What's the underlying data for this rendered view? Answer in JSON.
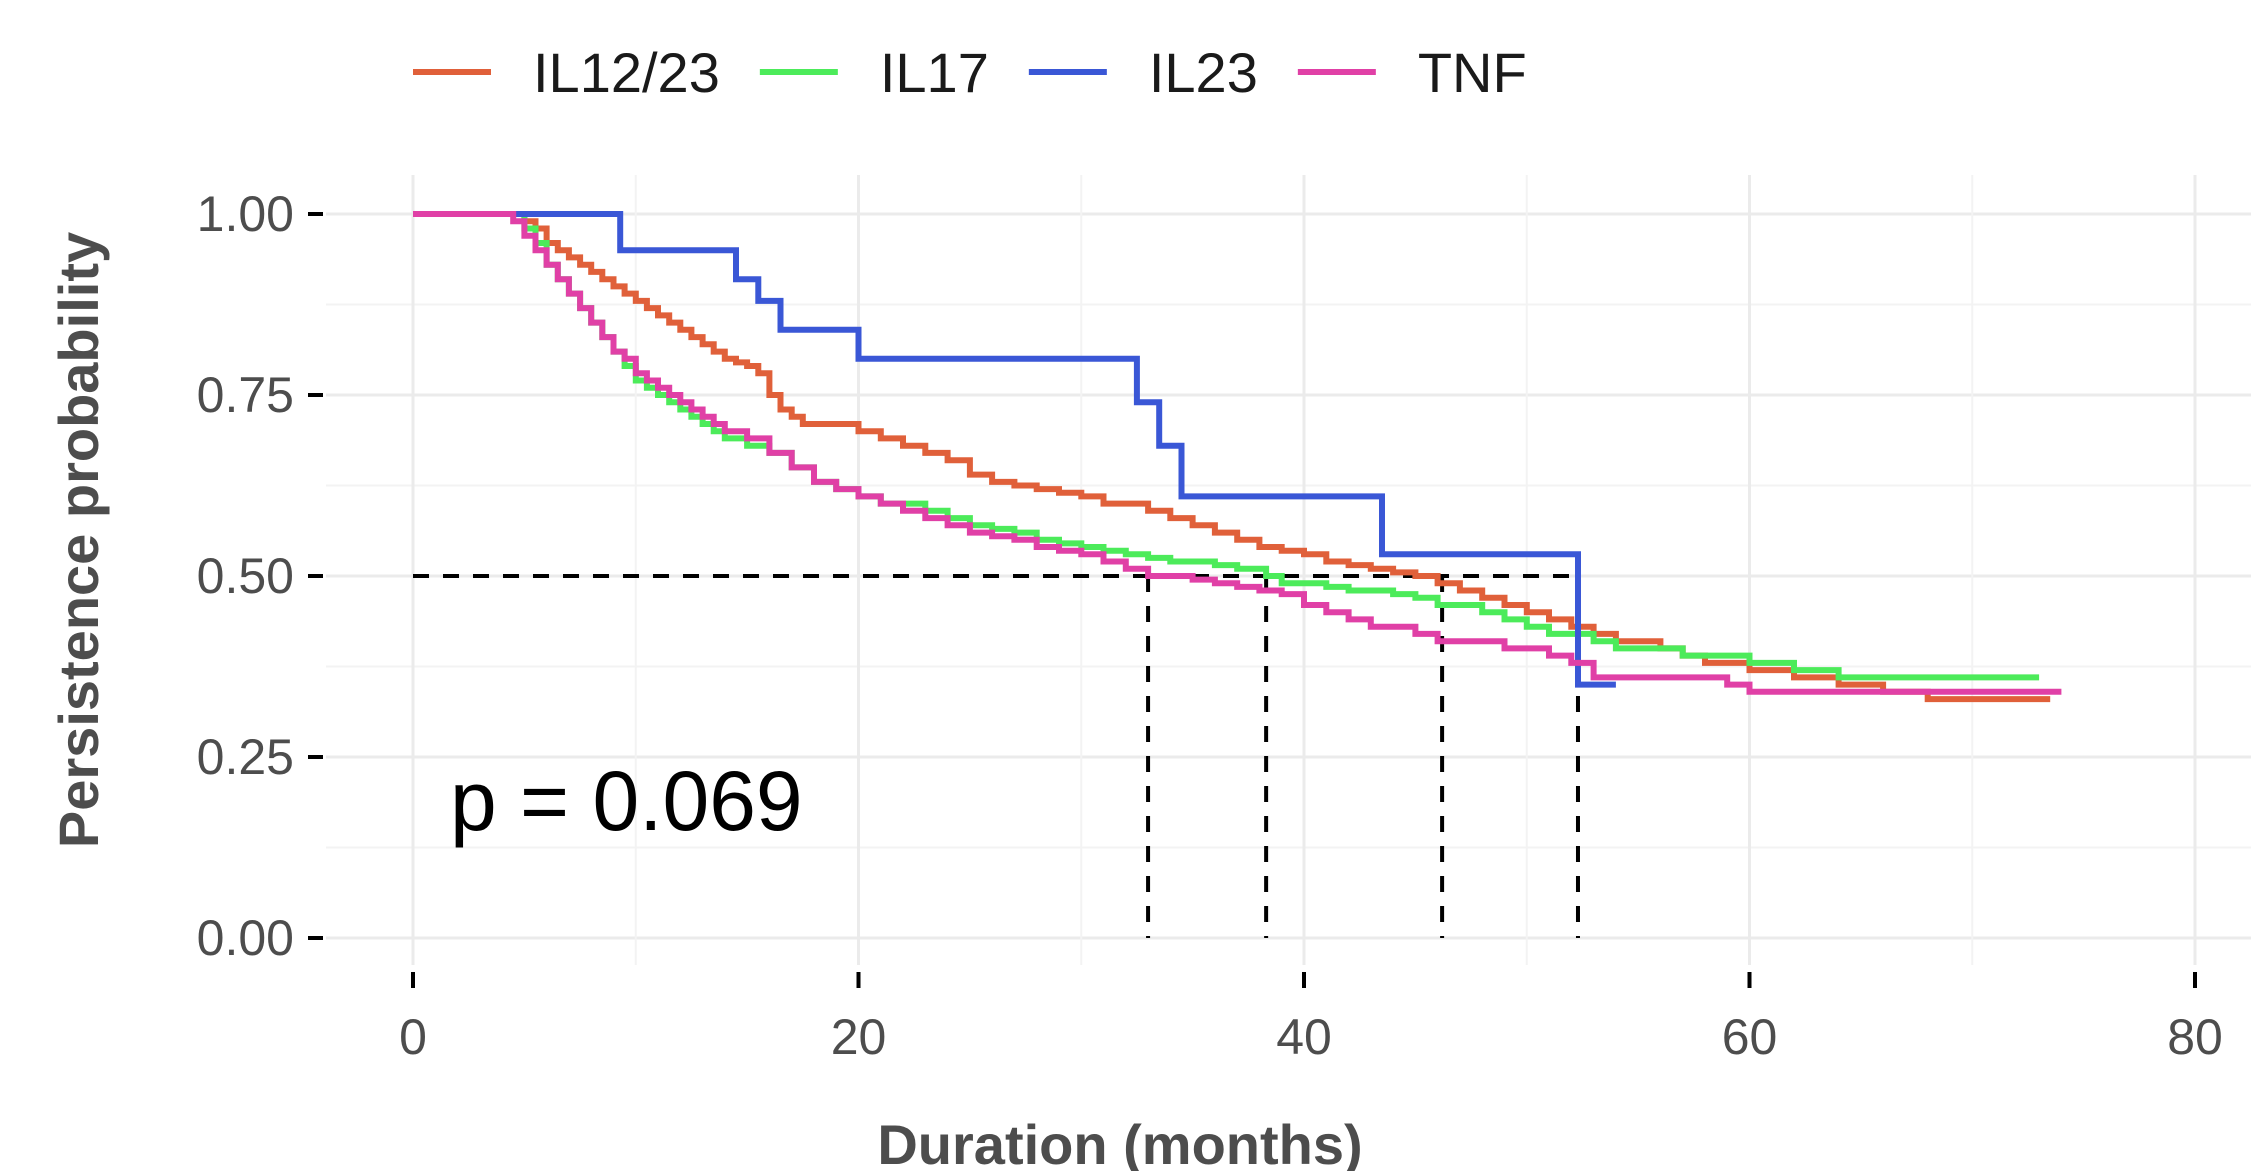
{
  "chart_data": {
    "type": "line",
    "xlabel": "Duration (months)",
    "ylabel": "Persistence probability",
    "xlim": [
      0,
      80
    ],
    "ylim": [
      0,
      1
    ],
    "x_ticks": [
      0,
      20,
      40,
      60,
      80
    ],
    "x_tick_labels": [
      "0",
      "20",
      "40",
      "60",
      "80"
    ],
    "y_ticks": [
      0,
      0.25,
      0.5,
      0.75,
      1
    ],
    "y_tick_labels": [
      "0.00",
      "0.25",
      "0.50",
      "0.75",
      "1.00"
    ],
    "grid": true,
    "legend_position": "top-left",
    "annotation": "p = 0.069",
    "median_reference": {
      "y": 0.5,
      "medians": [
        33,
        38.3,
        46.2,
        52.3
      ],
      "color": "#000000"
    },
    "series": [
      {
        "name": "IL12/23",
        "color": "#e0603a",
        "x": [
          0,
          4,
          5,
          5.5,
          6,
          6.5,
          7,
          7.5,
          8,
          8.5,
          9,
          9.5,
          10,
          10.5,
          11,
          11.5,
          12,
          12.5,
          13,
          13.5,
          14,
          14.5,
          15,
          15.5,
          16,
          16.5,
          17,
          17.5,
          18,
          19,
          20,
          21,
          22,
          23,
          24,
          25,
          26,
          27,
          28,
          29,
          30,
          31,
          32,
          33,
          34,
          35,
          36,
          37,
          38,
          39,
          40,
          41,
          42,
          43,
          44,
          45,
          46,
          47,
          48,
          49,
          50,
          51,
          52,
          53,
          54,
          55,
          56,
          57,
          58,
          59,
          60,
          62,
          64,
          66,
          68,
          70,
          72,
          73.5
        ],
        "y": [
          1,
          1,
          0.99,
          0.98,
          0.96,
          0.95,
          0.94,
          0.93,
          0.92,
          0.91,
          0.9,
          0.89,
          0.88,
          0.87,
          0.86,
          0.85,
          0.84,
          0.83,
          0.82,
          0.81,
          0.8,
          0.795,
          0.79,
          0.78,
          0.75,
          0.73,
          0.72,
          0.71,
          0.71,
          0.71,
          0.7,
          0.69,
          0.68,
          0.67,
          0.66,
          0.64,
          0.63,
          0.625,
          0.62,
          0.615,
          0.61,
          0.6,
          0.6,
          0.59,
          0.58,
          0.57,
          0.56,
          0.55,
          0.54,
          0.535,
          0.53,
          0.52,
          0.515,
          0.51,
          0.505,
          0.5,
          0.49,
          0.48,
          0.47,
          0.46,
          0.45,
          0.44,
          0.43,
          0.42,
          0.41,
          0.41,
          0.4,
          0.39,
          0.38,
          0.38,
          0.37,
          0.36,
          0.35,
          0.34,
          0.33,
          0.33,
          0.33,
          0.33
        ]
      },
      {
        "name": "IL17",
        "color": "#4ceb5a",
        "x": [
          0,
          4,
          5,
          5.5,
          6,
          6.5,
          7,
          7.5,
          8,
          8.5,
          9,
          9.5,
          10,
          10.5,
          11,
          11.5,
          12,
          12.5,
          13,
          13.5,
          14,
          15,
          16,
          17,
          18,
          19,
          20,
          21,
          22,
          23,
          24,
          25,
          26,
          27,
          28,
          29,
          30,
          31,
          32,
          33,
          34,
          35,
          36,
          37,
          38,
          38.3,
          39,
          40,
          41,
          42,
          43,
          44,
          45,
          46,
          47,
          48,
          49,
          50,
          51,
          52,
          53,
          54,
          55,
          56,
          57,
          58,
          59,
          60,
          62,
          64,
          66,
          68,
          70,
          72,
          73
        ],
        "y": [
          1,
          1,
          0.98,
          0.96,
          0.93,
          0.91,
          0.89,
          0.87,
          0.85,
          0.83,
          0.81,
          0.79,
          0.77,
          0.76,
          0.75,
          0.74,
          0.73,
          0.72,
          0.71,
          0.7,
          0.69,
          0.68,
          0.67,
          0.65,
          0.63,
          0.62,
          0.61,
          0.6,
          0.6,
          0.59,
          0.58,
          0.57,
          0.565,
          0.56,
          0.55,
          0.545,
          0.54,
          0.535,
          0.53,
          0.525,
          0.52,
          0.52,
          0.515,
          0.51,
          0.51,
          0.5,
          0.49,
          0.49,
          0.485,
          0.48,
          0.48,
          0.475,
          0.47,
          0.46,
          0.46,
          0.45,
          0.44,
          0.43,
          0.42,
          0.42,
          0.41,
          0.4,
          0.4,
          0.4,
          0.39,
          0.39,
          0.39,
          0.38,
          0.37,
          0.36,
          0.36,
          0.36,
          0.36,
          0.36,
          0.36
        ]
      },
      {
        "name": "IL23",
        "color": "#3a57d6",
        "x": [
          0,
          8.8,
          9.3,
          14,
          14.5,
          15.5,
          16.5,
          20,
          32,
          32.5,
          33.5,
          34.5,
          43.5,
          52.3,
          54
        ],
        "y": [
          1,
          1,
          0.95,
          0.95,
          0.91,
          0.88,
          0.84,
          0.8,
          0.8,
          0.74,
          0.68,
          0.61,
          0.53,
          0.35,
          0.35
        ]
      },
      {
        "name": "TNF",
        "color": "#e040a6",
        "x": [
          0,
          4,
          4.5,
          5,
          5.5,
          6,
          6.5,
          7,
          7.5,
          8,
          8.5,
          9,
          9.5,
          10,
          10.5,
          11,
          11.5,
          12,
          12.5,
          13,
          13.5,
          14,
          15,
          16,
          17,
          18,
          19,
          20,
          21,
          22,
          23,
          24,
          25,
          26,
          27,
          28,
          29,
          30,
          31,
          32,
          33,
          34,
          35,
          36,
          37,
          38,
          39,
          40,
          41,
          42,
          43,
          44,
          45,
          46,
          47,
          48,
          49,
          50,
          51,
          52,
          53,
          54,
          55,
          56,
          57,
          58,
          59,
          60,
          62,
          64,
          66,
          68,
          70,
          72,
          74
        ],
        "y": [
          1,
          1,
          0.99,
          0.97,
          0.95,
          0.93,
          0.91,
          0.89,
          0.87,
          0.85,
          0.83,
          0.81,
          0.8,
          0.78,
          0.77,
          0.76,
          0.75,
          0.74,
          0.73,
          0.72,
          0.71,
          0.7,
          0.69,
          0.67,
          0.65,
          0.63,
          0.62,
          0.61,
          0.6,
          0.59,
          0.58,
          0.57,
          0.56,
          0.555,
          0.55,
          0.54,
          0.535,
          0.53,
          0.52,
          0.51,
          0.5,
          0.5,
          0.495,
          0.49,
          0.485,
          0.48,
          0.475,
          0.46,
          0.45,
          0.44,
          0.43,
          0.43,
          0.42,
          0.41,
          0.41,
          0.41,
          0.4,
          0.4,
          0.39,
          0.38,
          0.36,
          0.36,
          0.36,
          0.36,
          0.36,
          0.36,
          0.35,
          0.34,
          0.34,
          0.34,
          0.34,
          0.34,
          0.34,
          0.34,
          0.34
        ]
      }
    ]
  }
}
